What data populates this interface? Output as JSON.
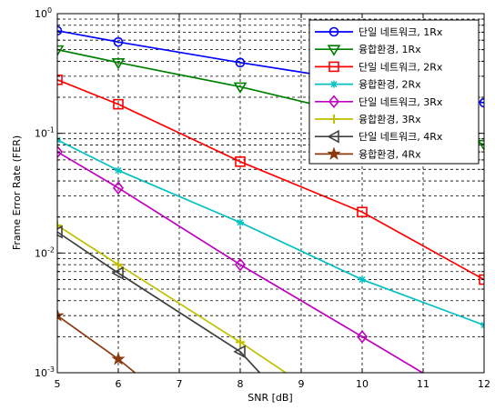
{
  "chart_data": {
    "type": "line",
    "xlabel": "SNR [dB]",
    "ylabel": "Frame Error Rate (FER)",
    "xlim": [
      5,
      12
    ],
    "ylim": [
      0.001,
      1
    ],
    "yscale": "log",
    "grid": true,
    "legend_position": "top-right",
    "x_ticks": [
      "5",
      "6",
      "7",
      "8",
      "9",
      "10",
      "11",
      "12"
    ],
    "y_ticks": [
      {
        "base": "10",
        "exp": "-3",
        "value": 0.001
      },
      {
        "base": "10",
        "exp": "-2",
        "value": 0.01
      },
      {
        "base": "10",
        "exp": "-1",
        "value": 0.1
      },
      {
        "base": "10",
        "exp": "0",
        "value": 1
      }
    ],
    "series": [
      {
        "name": "단일 네트워크, 1Rx",
        "color": "#0000ff",
        "marker": "circle",
        "x": [
          5,
          6,
          8,
          10,
          12
        ],
        "y": [
          0.72,
          0.58,
          0.39,
          0.27,
          0.18
        ]
      },
      {
        "name": "융합환경, 1Rx",
        "color": "#008000",
        "marker": "triangle-down",
        "x": [
          5,
          6,
          8,
          10,
          12
        ],
        "y": [
          0.5,
          0.39,
          0.245,
          0.14,
          0.081
        ]
      },
      {
        "name": "단일 네트워크, 2Rx",
        "color": "#ff0000",
        "marker": "square",
        "x": [
          5,
          6,
          8,
          10,
          12
        ],
        "y": [
          0.28,
          0.175,
          0.058,
          0.022,
          0.006
        ]
      },
      {
        "name": "융합환경, 2Rx",
        "color": "#00c0c0",
        "marker": "star",
        "x": [
          5,
          6,
          8,
          10,
          12
        ],
        "y": [
          0.088,
          0.049,
          0.018,
          0.006,
          0.0025
        ]
      },
      {
        "name": "단일 네트워크, 3Rx",
        "color": "#c000c0",
        "marker": "diamond",
        "x": [
          5,
          6,
          8,
          10,
          11.5
        ],
        "y": [
          0.07,
          0.035,
          0.008,
          0.002,
          0.0007
        ]
      },
      {
        "name": "융합환경, 3Rx",
        "color": "#c0c000",
        "marker": "plus",
        "x": [
          5,
          6,
          8,
          9.2
        ],
        "y": [
          0.017,
          0.008,
          0.0018,
          0.0007
        ]
      },
      {
        "name": "단일 네트워크, 4Rx",
        "color": "#404040",
        "marker": "triangle-left",
        "x": [
          5,
          6,
          8,
          8.6
        ],
        "y": [
          0.015,
          0.0068,
          0.0015,
          0.0007
        ]
      },
      {
        "name": "융합환경, 4Rx",
        "color": "#8b3a0f",
        "marker": "star6",
        "x": [
          5,
          6,
          7
        ],
        "y": [
          0.003,
          0.0013,
          0.0005
        ]
      }
    ]
  }
}
